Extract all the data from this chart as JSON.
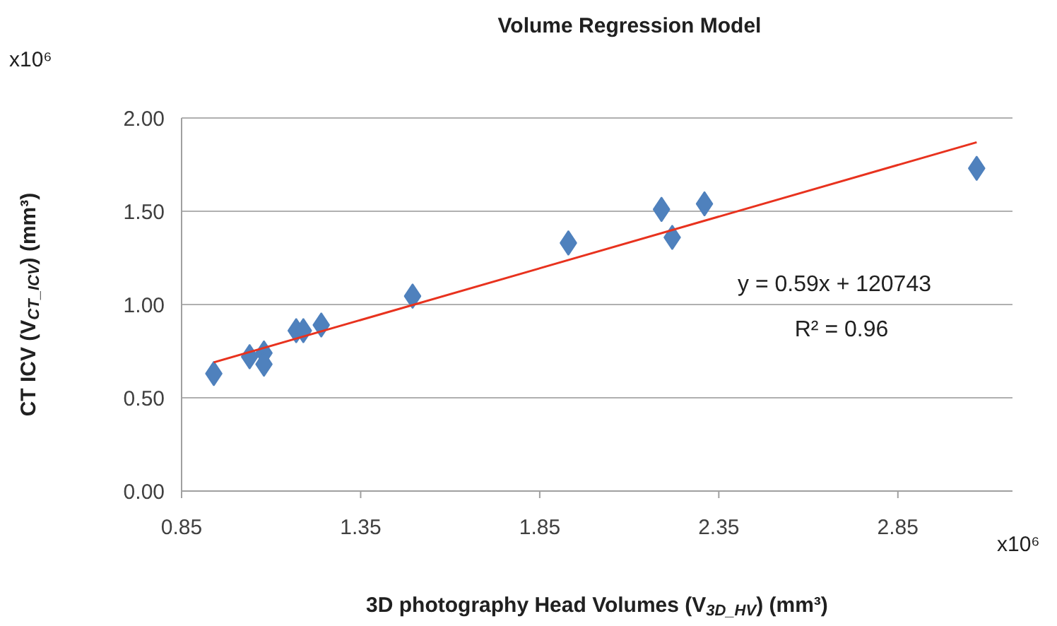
{
  "chart_data": {
    "type": "scatter",
    "title": "Volume Regression Model",
    "xlabel": "3D photography Head Volumes (V$_{3D_HV}$) (mm³)",
    "ylabel": "CT ICV (V$_{CT_ICV}$) (mm³)",
    "series": [
      {
        "color": "#4f81bd",
        "marker": "diamond",
        "x": [
          0.94,
          1.04,
          1.08,
          1.08,
          1.17,
          1.19,
          1.24,
          1.495,
          1.93,
          2.19,
          2.22,
          2.31,
          3.07
        ],
        "values": [
          0.63,
          0.72,
          0.74,
          0.68,
          0.86,
          0.86,
          0.89,
          1.045,
          1.33,
          1.51,
          1.36,
          1.54,
          1.73
        ]
      },
      {
        "type": "line",
        "color": "#e8321e",
        "marker": "none",
        "x": [
          0.94,
          3.07
        ],
        "values": [
          0.69,
          1.87
        ]
      }
    ],
    "xlim": [
      0.85,
      3.17
    ],
    "xticks": [
      0.85,
      1.35,
      1.85,
      2.35,
      2.85
    ],
    "ylim": [
      0,
      2.0
    ],
    "yticks": [
      {
        "value": 0,
        "label": "0.00"
      },
      {
        "value": 0.5,
        "label": "0.50"
      },
      {
        "value": 1,
        "label": "1.00"
      },
      {
        "value": 1.5,
        "label": "1.50"
      },
      {
        "value": 2,
        "label": "2.00"
      }
    ],
    "grid": "y",
    "annotations": [
      "y = 0.59x + 120743",
      "R² = 0.96",
      "x10⁶",
      "x10⁶"
    ]
  }
}
